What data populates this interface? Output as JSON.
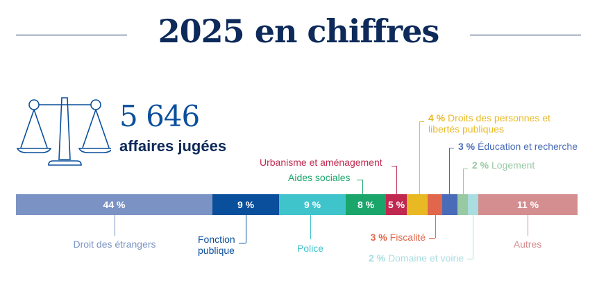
{
  "title": "2025 en chiffres",
  "total": {
    "value": "5 646",
    "label": "affaires jugées"
  },
  "colors": {
    "navy": "#0d2a5a"
  },
  "chart_data": {
    "type": "bar",
    "orientation": "stacked-horizontal",
    "unit": "%",
    "categories": [
      "Droit des étrangers",
      "Fonction publique",
      "Police",
      "Aides sociales",
      "Urbanisme et aménagement",
      "Droits des personnes et libertés publiques",
      "Fiscalité",
      "Éducation et recherche",
      "Logement",
      "Domaine et voirie",
      "Autres"
    ],
    "values": [
      44,
      9,
      9,
      8,
      5,
      4,
      3,
      3,
      2,
      2,
      11
    ],
    "bar_labels": [
      "44 %",
      "9 %",
      "9 %",
      "8 %",
      "5 %",
      "",
      "",
      "",
      "",
      "",
      "11 %"
    ],
    "pct_labels": [
      "",
      "",
      "",
      "",
      "",
      "4 %",
      "3 %",
      "3 %",
      "2 %",
      "2 %",
      ""
    ],
    "colors": [
      "#7b93c4",
      "#0a4f9c",
      "#3fc4cc",
      "#1aa56a",
      "#c0284f",
      "#e9b924",
      "#e0674b",
      "#4a6cb8",
      "#98c9a3",
      "#a9dde0",
      "#d48e90"
    ]
  }
}
